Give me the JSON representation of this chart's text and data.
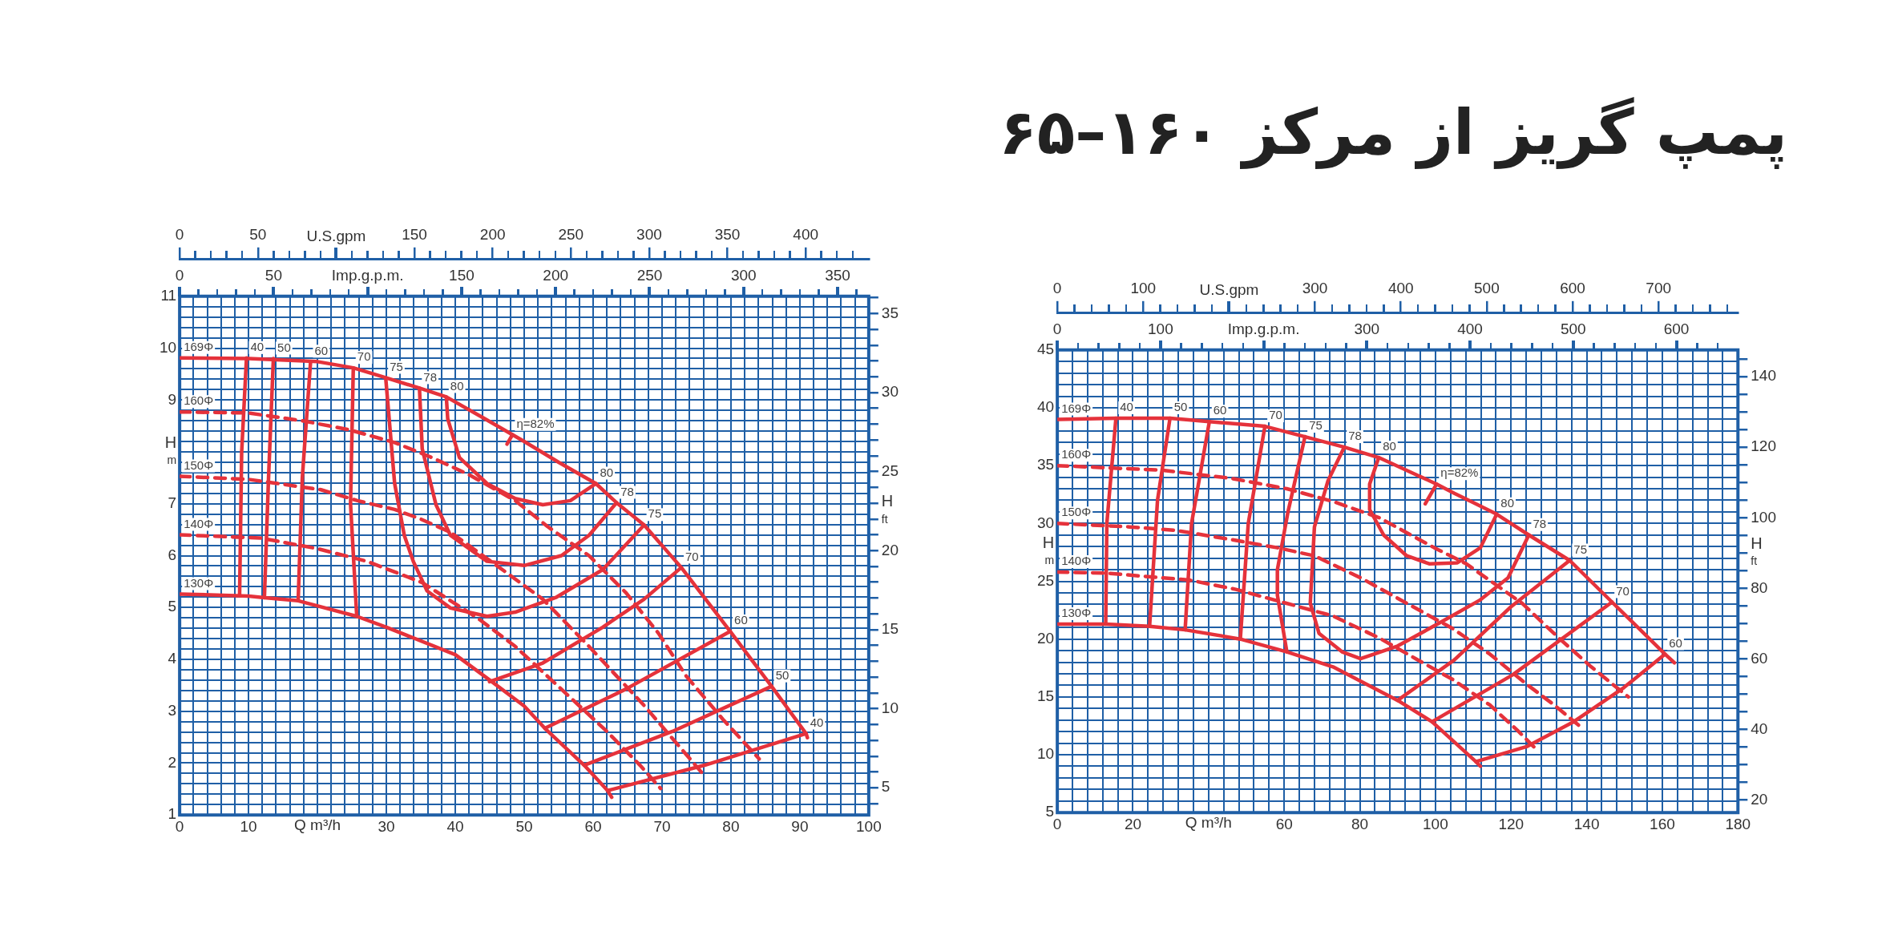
{
  "chart_data": [
    {
      "type": "line",
      "xlabel": "Q m³/h",
      "x2label": "U.S.gpm",
      "ylabel": "H m",
      "y2label": "H ft",
      "xlim": [
        0,
        100
      ],
      "xticks": [
        0,
        {
          "value": 2,
          "label": null
        },
        {
          "value": 4,
          "label": null
        },
        {
          "value": 6,
          "label": null
        },
        {
          "value": 8,
          "label": null
        },
        10,
        {
          "value": 12,
          "label": null
        },
        {
          "value": 14,
          "label": null
        },
        {
          "value": 16,
          "label": null
        },
        {
          "value": 18,
          "label": null
        },
        {
          "value": 20,
          "label": null
        },
        {
          "value": 22,
          "label": null
        },
        {
          "value": 24,
          "label": null
        },
        {
          "value": 26,
          "label": null
        },
        {
          "value": 28,
          "label": null
        },
        30,
        {
          "value": 32,
          "label": null
        },
        {
          "value": 34,
          "label": null
        },
        {
          "value": 36,
          "label": null
        },
        {
          "value": 38,
          "label": null
        },
        40,
        {
          "value": 42,
          "label": null
        },
        {
          "value": 44,
          "label": null
        },
        {
          "value": 46,
          "label": null
        },
        {
          "value": 48,
          "label": null
        },
        50,
        {
          "value": 52,
          "label": null
        },
        {
          "value": 54,
          "label": null
        },
        {
          "value": 56,
          "label": null
        },
        {
          "value": 58,
          "label": null
        },
        60,
        {
          "value": 62,
          "label": null
        },
        {
          "value": 64,
          "label": null
        },
        {
          "value": 66,
          "label": null
        },
        {
          "value": 68,
          "label": null
        },
        70,
        {
          "value": 72,
          "label": null
        },
        {
          "value": 74,
          "label": null
        },
        {
          "value": 76,
          "label": null
        },
        {
          "value": 78,
          "label": null
        },
        80,
        {
          "value": 82,
          "label": null
        },
        {
          "value": 84,
          "label": null
        },
        {
          "value": 86,
          "label": null
        },
        {
          "value": 88,
          "label": null
        },
        90,
        {
          "value": 92,
          "label": null
        },
        {
          "value": 94,
          "label": null
        },
        {
          "value": 96,
          "label": null
        },
        {
          "value": 98,
          "label": null
        },
        100
      ],
      "x2lim": [
        0,
        440.3
      ],
      "x2ticks": [
        0,
        50,
        150,
        200,
        250,
        300,
        350,
        400
      ],
      "annotations": [
        "0",
        "50",
        "Imp.g.p.m.",
        "150",
        "200",
        "250",
        "300",
        "350"
      ],
      "ylim": [
        1,
        11
      ],
      "yticks": [
        1,
        {
          "value": 1.2,
          "label": null
        },
        {
          "value": 1.4,
          "label": null
        },
        {
          "value": 1.6,
          "label": null
        },
        {
          "value": 1.8,
          "label": null
        },
        2,
        {
          "value": 2.2,
          "label": null
        },
        {
          "value": 2.4,
          "label": null
        },
        {
          "value": 2.6,
          "label": null
        },
        {
          "value": 2.8,
          "label": null
        },
        3,
        {
          "value": 3.2,
          "label": null
        },
        {
          "value": 3.4,
          "label": null
        },
        {
          "value": 3.6,
          "label": null
        },
        {
          "value": 3.8,
          "label": null
        },
        4,
        {
          "value": 4.2,
          "label": null
        },
        {
          "value": 4.4,
          "label": null
        },
        {
          "value": 4.6,
          "label": null
        },
        {
          "value": 4.8,
          "label": null
        },
        5,
        {
          "value": 5.2,
          "label": null
        },
        {
          "value": 5.4,
          "label": null
        },
        {
          "value": 5.6,
          "label": null
        },
        {
          "value": 5.8,
          "label": null
        },
        6,
        {
          "value": 6.2,
          "label": null
        },
        {
          "value": 6.4,
          "label": null
        },
        {
          "value": 6.6,
          "label": null
        },
        {
          "value": 6.8,
          "label": null
        },
        7,
        {
          "value": 7.2,
          "label": null
        },
        {
          "value": 7.4,
          "label": null
        },
        {
          "value": 7.6,
          "label": null
        },
        {
          "value": 7.8,
          "label": null
        },
        {
          "value": 8,
          "label": null
        },
        {
          "value": 8.2,
          "label": null
        },
        {
          "value": 8.4,
          "label": null
        },
        {
          "value": 8.6,
          "label": null
        },
        {
          "value": 8.8,
          "label": null
        },
        9,
        {
          "value": 9.2,
          "label": null
        },
        {
          "value": 9.4,
          "label": null
        },
        {
          "value": 9.6,
          "label": null
        },
        {
          "value": 9.8,
          "label": null
        },
        10,
        {
          "value": 10.2,
          "label": null
        },
        {
          "value": 10.4,
          "label": null
        },
        {
          "value": 10.6,
          "label": null
        },
        {
          "value": 10.8,
          "label": null
        },
        11
      ],
      "y2lim": [
        3.28,
        36.09
      ],
      "y2ticks": [
        {
          "value": 4,
          "label": null
        },
        5,
        {
          "value": 6,
          "label": null
        },
        {
          "value": 7,
          "label": null
        },
        {
          "value": 8,
          "label": null
        },
        {
          "value": 9,
          "label": null
        },
        10,
        {
          "value": 11,
          "label": null
        },
        {
          "value": 12,
          "label": null
        },
        {
          "value": 13,
          "label": null
        },
        {
          "value": 14,
          "label": null
        },
        15,
        {
          "value": 16,
          "label": null
        },
        {
          "value": 17,
          "label": null
        },
        {
          "value": 18,
          "label": null
        },
        {
          "value": 19,
          "label": null
        },
        20,
        {
          "value": 21,
          "label": null
        },
        {
          "value": 22,
          "label": null
        },
        {
          "value": 23,
          "label": null
        },
        {
          "value": 24,
          "label": null
        },
        25,
        {
          "value": 26,
          "label": null
        },
        {
          "value": 27,
          "label": null
        },
        {
          "value": 28,
          "label": null
        },
        {
          "value": 29,
          "label": null
        },
        30,
        {
          "value": 31,
          "label": null
        },
        {
          "value": 32,
          "label": null
        },
        {
          "value": 33,
          "label": null
        },
        {
          "value": 34,
          "label": null
        },
        35,
        {
          "value": 36,
          "label": null
        }
      ],
      "grid": true,
      "legend": false,
      "marker": "none",
      "series": [
        {
          "name": "169Φ",
          "color": "#e5323b",
          "line_style": "solid",
          "x": [
            0,
            10,
            20,
            25.2,
            29.9,
            34.8,
            38.7,
            44,
            50,
            55,
            60.4,
            63.4,
            67.4,
            72.8,
            79.9,
            85.9,
            90.9,
            91.1
          ],
          "values": [
            9.81,
            9.8,
            9.74,
            9.62,
            9.43,
            9.23,
            9.06,
            8.66,
            8.2,
            7.8,
            7.39,
            7.02,
            6.59,
            5.77,
            4.54,
            3.48,
            2.57,
            2.49
          ]
        },
        {
          "name": "160Φ",
          "color": "#e5323b",
          "line_style": "dashed",
          "x": [
            0,
            10,
            17.8,
            24.5,
            31.2,
            36.6,
            42,
            48.7,
            53.4,
            59.4,
            64.8,
            69.5,
            73.5,
            78.8,
            84.1
          ],
          "values": [
            8.77,
            8.75,
            8.6,
            8.43,
            8.18,
            7.89,
            7.56,
            7.06,
            6.56,
            6.0,
            5.28,
            4.5,
            3.68,
            2.85,
            2.08
          ]
        },
        {
          "name": "150Φ",
          "color": "#e5323b",
          "line_style": "dashed",
          "x": [
            0,
            10,
            20.5,
            25.8,
            31.2,
            34.9,
            39.3,
            46,
            52.7,
            59.4,
            67.4,
            76.2
          ],
          "values": [
            7.53,
            7.47,
            7.27,
            7.06,
            6.89,
            6.71,
            6.45,
            5.81,
            5.16,
            4.25,
            3.11,
            1.75
          ]
        },
        {
          "name": "140Φ",
          "color": "#e5323b",
          "line_style": "dashed",
          "x": [
            0,
            11.7,
            19.8,
            27.2,
            35.2,
            43.3,
            48.7,
            56,
            62,
            66.8,
            69.8
          ],
          "values": [
            6.4,
            6.34,
            6.14,
            5.89,
            5.48,
            4.79,
            4.25,
            3.35,
            2.61,
            1.96,
            1.51
          ]
        },
        {
          "name": "130Φ",
          "color": "#e5323b",
          "line_style": "solid",
          "x": [
            0,
            10,
            12.3,
            17.2,
            25.7,
            30,
            40,
            45,
            50,
            53,
            58.7,
            62.1,
            62.7
          ],
          "values": [
            5.26,
            5.22,
            5.19,
            5.13,
            4.83,
            4.62,
            4.09,
            3.6,
            3.1,
            2.67,
            1.96,
            1.47,
            1.34
          ]
        },
        {
          "name": "40",
          "color": "#e5323b",
          "line_style": "solid",
          "x": [
            9.7,
            9.0,
            8.7
          ],
          "values": [
            9.81,
            8.0,
            5.24
          ]
        },
        {
          "name": "50",
          "color": "#e5323b",
          "line_style": "solid",
          "x": [
            13.6,
            12.9,
            12.3
          ],
          "values": [
            9.8,
            7.5,
            5.19
          ]
        },
        {
          "name": "60",
          "color": "#e5323b",
          "line_style": "solid",
          "x": [
            19,
            17.8,
            17.2
          ],
          "values": [
            9.74,
            7.5,
            5.13
          ]
        },
        {
          "name": "70",
          "color": "#e5323b",
          "line_style": "solid",
          "x": [
            25.2,
            24.8,
            25.7
          ],
          "values": [
            9.62,
            7.0,
            4.83
          ]
        },
        {
          "name": "75",
          "color": "#e5323b",
          "line_style": "solid",
          "x": [
            29.9,
            31.2,
            32.6,
            33.9,
            35.9,
            39.3,
            44.6,
            48.7,
            54.7,
            61.4,
            67.4
          ],
          "values": [
            9.43,
            7.39,
            6.39,
            5.89,
            5.32,
            4.99,
            4.83,
            4.91,
            5.2,
            5.73,
            6.59
          ]
        },
        {
          "name": "78",
          "color": "#e5323b",
          "line_style": "solid",
          "x": [
            34.8,
            35.2,
            37.2,
            39.3,
            44.6,
            50,
            55.4,
            59.4,
            63.4
          ],
          "values": [
            9.23,
            8.06,
            6.98,
            6.39,
            5.89,
            5.81,
            6.0,
            6.39,
            7.02
          ]
        },
        {
          "name": "80",
          "color": "#e5323b",
          "line_style": "solid",
          "x": [
            38.7,
            38.9,
            40.6,
            44.6,
            48.7,
            52.7,
            56.7,
            60.4
          ],
          "values": [
            9.06,
            8.64,
            7.89,
            7.39,
            7.1,
            6.98,
            7.06,
            7.39
          ]
        },
        {
          "name": "η=82%",
          "color": "#e5323b",
          "line_style": "solid",
          "x": [
            48.3,
            47.5
          ],
          "values": [
            8.33,
            8.15
          ]
        },
        {
          "name": "70",
          "color": "#e5323b",
          "line_style": "solid",
          "x": [
            72.8,
            67.4,
            61.4,
            52.7,
            44.96
          ],
          "values": [
            5.77,
            5.16,
            4.62,
            3.93,
            3.57
          ]
        },
        {
          "name": "60",
          "color": "#e5323b",
          "line_style": "solid",
          "x": [
            79.9,
            64.8,
            53
          ],
          "values": [
            4.54,
            3.43,
            2.67
          ]
        },
        {
          "name": "50",
          "color": "#e5323b",
          "line_style": "solid",
          "x": [
            85.9,
            71.5,
            58.7
          ],
          "values": [
            3.48,
            2.61,
            1.96
          ]
        },
        {
          "name": "40",
          "color": "#e5323b",
          "line_style": "solid",
          "x": [
            90.9,
            76.2,
            62.1
          ],
          "values": [
            2.57,
            1.96,
            1.47
          ]
        }
      ]
    },
    {
      "type": "line",
      "title": "پمپ گریز از مرکز ۱۶۰–۶۵",
      "xlabel": "Q m³/h",
      "x2label": "U.S.gpm",
      "ylabel": "H m",
      "y2label": "H ft",
      "xlim": [
        0,
        180
      ],
      "xticks": [
        0,
        {
          "value": 4,
          "label": null
        },
        {
          "value": 8,
          "label": null
        },
        {
          "value": 12,
          "label": null
        },
        {
          "value": 16,
          "label": null
        },
        20,
        {
          "value": 24,
          "label": null
        },
        {
          "value": 28,
          "label": null
        },
        {
          "value": 32,
          "label": null
        },
        {
          "value": 36,
          "label": null
        },
        {
          "value": 40,
          "label": null
        },
        {
          "value": 44,
          "label": null
        },
        {
          "value": 48,
          "label": null
        },
        {
          "value": 52,
          "label": null
        },
        {
          "value": 56,
          "label": null
        },
        60,
        {
          "value": 64,
          "label": null
        },
        {
          "value": 68,
          "label": null
        },
        {
          "value": 72,
          "label": null
        },
        {
          "value": 76,
          "label": null
        },
        80,
        {
          "value": 84,
          "label": null
        },
        {
          "value": 88,
          "label": null
        },
        {
          "value": 92,
          "label": null
        },
        {
          "value": 96,
          "label": null
        },
        100,
        {
          "value": 104,
          "label": null
        },
        {
          "value": 108,
          "label": null
        },
        {
          "value": 112,
          "label": null
        },
        {
          "value": 116,
          "label": null
        },
        120,
        {
          "value": 124,
          "label": null
        },
        {
          "value": 128,
          "label": null
        },
        {
          "value": 132,
          "label": null
        },
        {
          "value": 136,
          "label": null
        },
        140,
        {
          "value": 144,
          "label": null
        },
        {
          "value": 148,
          "label": null
        },
        {
          "value": 152,
          "label": null
        },
        {
          "value": 156,
          "label": null
        },
        160,
        {
          "value": 164,
          "label": null
        },
        {
          "value": 168,
          "label": null
        },
        {
          "value": 172,
          "label": null
        },
        {
          "value": 176,
          "label": null
        },
        180
      ],
      "x2lim": [
        0,
        792.5
      ],
      "x2ticks": [
        0,
        100,
        300,
        400,
        500,
        600,
        700
      ],
      "annotations": [
        "0",
        "100",
        "Imp.g.p.m.",
        "300",
        "400",
        "500",
        "600"
      ],
      "ylim": [
        5,
        45
      ],
      "yticks": [
        5,
        {
          "value": 6,
          "label": null
        },
        {
          "value": 7,
          "label": null
        },
        {
          "value": 8,
          "label": null
        },
        {
          "value": 9,
          "label": null
        },
        10,
        {
          "value": 11,
          "label": null
        },
        {
          "value": 12,
          "label": null
        },
        {
          "value": 13,
          "label": null
        },
        {
          "value": 14,
          "label": null
        },
        15,
        {
          "value": 16,
          "label": null
        },
        {
          "value": 17,
          "label": null
        },
        {
          "value": 18,
          "label": null
        },
        {
          "value": 19,
          "label": null
        },
        20,
        {
          "value": 21,
          "label": null
        },
        {
          "value": 22,
          "label": null
        },
        {
          "value": 23,
          "label": null
        },
        {
          "value": 24,
          "label": null
        },
        25,
        {
          "value": 26,
          "label": null
        },
        {
          "value": 27,
          "label": null
        },
        {
          "value": 28,
          "label": null
        },
        {
          "value": 29,
          "label": null
        },
        30,
        {
          "value": 31,
          "label": null
        },
        {
          "value": 32,
          "label": null
        },
        {
          "value": 33,
          "label": null
        },
        {
          "value": 34,
          "label": null
        },
        35,
        {
          "value": 36,
          "label": null
        },
        {
          "value": 37,
          "label": null
        },
        {
          "value": 38,
          "label": null
        },
        {
          "value": 39,
          "label": null
        },
        40,
        {
          "value": 41,
          "label": null
        },
        {
          "value": 42,
          "label": null
        },
        {
          "value": 43,
          "label": null
        },
        {
          "value": 44,
          "label": null
        },
        45
      ],
      "y2lim": [
        16.4,
        147.6
      ],
      "y2ticks": [
        20,
        {
          "value": 25,
          "label": null
        },
        {
          "value": 30,
          "label": null
        },
        {
          "value": 35,
          "label": null
        },
        40,
        {
          "value": 45,
          "label": null
        },
        {
          "value": 50,
          "label": null
        },
        {
          "value": 55,
          "label": null
        },
        60,
        {
          "value": 65,
          "label": null
        },
        {
          "value": 70,
          "label": null
        },
        {
          "value": 75,
          "label": null
        },
        80,
        {
          "value": 85,
          "label": null
        },
        {
          "value": 90,
          "label": null
        },
        {
          "value": 95,
          "label": null
        },
        100,
        {
          "value": 105,
          "label": null
        },
        {
          "value": 110,
          "label": null
        },
        {
          "value": 115,
          "label": null
        },
        120,
        {
          "value": 125,
          "label": null
        },
        {
          "value": 130,
          "label": null
        },
        {
          "value": 135,
          "label": null
        },
        140,
        {
          "value": 145,
          "label": null
        }
      ],
      "grid": true,
      "legend": false,
      "marker": "none",
      "series": [
        {
          "name": "169Φ",
          "color": "#e5323b",
          "line_style": "solid",
          "x": [
            0,
            15.5,
            29.8,
            40.2,
            54.9,
            65.5,
            75.9,
            85,
            95,
            100.3,
            105,
            110,
            116.2,
            124.7,
            135.5,
            146.7,
            160.7,
            163.2
          ],
          "values": [
            39.0,
            39.1,
            39.1,
            38.8,
            38.4,
            37.5,
            36.6,
            35.7,
            34.2,
            33.4,
            32.6,
            31.8,
            30.8,
            29.0,
            26.8,
            23.2,
            18.7,
            17.95
          ]
        },
        {
          "name": "160Φ",
          "color": "#e5323b",
          "line_style": "dashed",
          "x": [
            0,
            27.7,
            46,
            60.7,
            72.9,
            85.1,
            99.7,
            108.2,
            122.9,
            132.6,
            141.2,
            151
          ],
          "values": [
            35,
            34.6,
            33.9,
            33.0,
            31.9,
            30.5,
            27.9,
            26.5,
            23.1,
            20.1,
            17.6,
            15.0
          ]
        },
        {
          "name": "150Φ",
          "color": "#e5323b",
          "line_style": "dashed",
          "x": [
            0,
            19.2,
            31.4,
            46,
            58.2,
            68,
            80.2,
            92.4,
            104.6,
            114.4,
            124.1,
            131.4,
            138.8
          ],
          "values": [
            30,
            29.7,
            29.4,
            28.6,
            27.9,
            27.2,
            25.3,
            23.1,
            20.9,
            18.7,
            16.1,
            14.3,
            12.3
          ]
        },
        {
          "name": "140Φ",
          "color": "#e5323b",
          "line_style": "dashed",
          "x": [
            0,
            13,
            24,
            35,
            47.2,
            59.4,
            72.9,
            85.1,
            94.8,
            104.6,
            114.4,
            121.7,
            126.6
          ],
          "values": [
            25.8,
            25.7,
            25.4,
            25.1,
            24.3,
            23.2,
            22.0,
            20.1,
            18.3,
            16.5,
            14.3,
            12.1,
            10.5
          ]
        },
        {
          "name": "130Φ",
          "color": "#e5323b",
          "line_style": "solid",
          "x": [
            0,
            12.8,
            24.4,
            33.8,
            48.4,
            60.7,
            72.9,
            90,
            99.1,
            110.7,
            111.9
          ],
          "values": [
            21.3,
            21.3,
            21.1,
            20.8,
            20.0,
            18.9,
            17.6,
            14.7,
            12.85,
            9.4,
            9.0
          ]
        },
        {
          "name": "40",
          "color": "#e5323b",
          "line_style": "solid",
          "x": [
            15.5,
            13.1,
            12.8
          ],
          "values": [
            39.1,
            30,
            21.3
          ]
        },
        {
          "name": "50",
          "color": "#e5323b",
          "line_style": "solid",
          "x": [
            29.8,
            26.5,
            24.4
          ],
          "values": [
            39.1,
            32,
            21.1
          ]
        },
        {
          "name": "60",
          "color": "#e5323b",
          "line_style": "solid",
          "x": [
            40.2,
            35.5,
            33.8
          ],
          "values": [
            38.8,
            30,
            20.8
          ]
        },
        {
          "name": "70",
          "color": "#e5323b",
          "line_style": "solid",
          "x": [
            54.9,
            50.5,
            48.4
          ],
          "values": [
            38.4,
            30,
            20.0
          ]
        },
        {
          "name": "75",
          "color": "#e5323b",
          "line_style": "solid",
          "x": [
            65.5,
            61,
            58.2,
            58.2,
            60.7
          ],
          "values": [
            37.5,
            31,
            26,
            23.8,
            18.9
          ]
        },
        {
          "name": "78",
          "color": "#e5323b",
          "line_style": "solid",
          "x": [
            75.9,
            71.6,
            68,
            66.9,
            69.2,
            75.3,
            80.2,
            90,
            102.2,
            111.9,
            119.2,
            124.7
          ],
          "values": [
            36.6,
            33.7,
            29.7,
            23.1,
            20.5,
            18.9,
            18.3,
            19.4,
            21.6,
            23.4,
            25.3,
            29.0
          ]
        },
        {
          "name": "80",
          "color": "#e5323b",
          "line_style": "solid",
          "x": [
            85,
            82.6,
            82.6,
            86.3,
            92.4,
            98.5,
            105.8,
            111.9,
            116.2
          ],
          "values": [
            35.7,
            33.4,
            31.2,
            29.0,
            27.2,
            26.5,
            26.6,
            27.9,
            30.8
          ]
        },
        {
          "name": "η=82%",
          "color": "#e5323b",
          "line_style": "solid",
          "x": [
            100.3,
            97.3
          ],
          "values": [
            33.4,
            31.7
          ]
        },
        {
          "name": "75",
          "color": "#e5323b",
          "line_style": "solid",
          "x": [
            135.5,
            120,
            105,
            90
          ],
          "values": [
            26.8,
            22.8,
            18.2,
            14.7
          ]
        },
        {
          "name": "70",
          "color": "#e5323b",
          "line_style": "solid",
          "x": [
            146.7,
            120.4,
            99.1
          ],
          "values": [
            23.2,
            16.9,
            12.85
          ]
        },
        {
          "name": "60",
          "color": "#e5323b",
          "line_style": "solid",
          "x": [
            160.7,
            149.8,
            136.3,
            124.1,
            110.7
          ],
          "values": [
            18.7,
            15.8,
            12.8,
            10.7,
            9.4
          ]
        }
      ]
    }
  ]
}
